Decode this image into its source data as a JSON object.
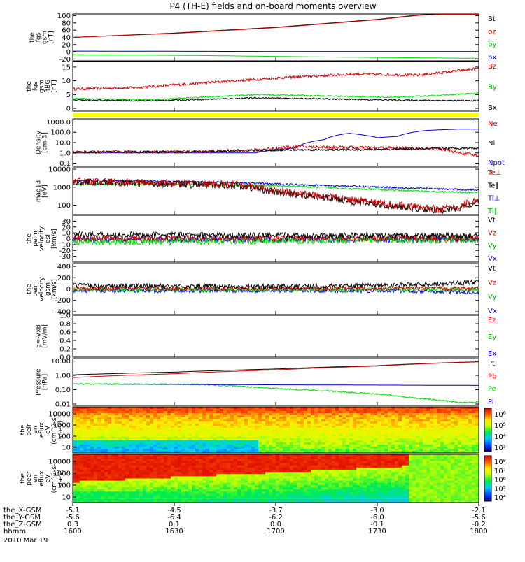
{
  "title": "P4 (TH-E) fields and on-board moments overview",
  "date_label": "2010 Mar 19",
  "colors": {
    "black": "#000000",
    "red": "#cc0000",
    "green": "#00dd00",
    "blue": "#0000cc",
    "yellow": "#ffff00"
  },
  "chart_data": {
    "type": "line",
    "x_tick_labels": [
      "1600",
      "1630",
      "1700",
      "1730",
      "1800"
    ],
    "x_axis": {
      "rows": [
        {
          "label": "the_X-GSM",
          "values": [
            "-5.1",
            "-4.5",
            "-3.7",
            "-3.0",
            "-2.1"
          ]
        },
        {
          "label": "the_Y-GSM",
          "values": [
            "-5.6",
            "-6.4",
            "-6.2",
            "-6.0",
            "-5.6"
          ]
        },
        {
          "label": "the_Z-GSM",
          "values": [
            "0.3",
            "0.1",
            "0.0",
            "-0.1",
            "-0.2"
          ]
        },
        {
          "label": "hhmm",
          "values": [
            "1600",
            "1630",
            "1700",
            "1730",
            "1800"
          ]
        }
      ]
    },
    "panels": [
      {
        "id": "fgs-gsm",
        "ylabel": [
          "the",
          "fgs",
          "gsm",
          "[nT]"
        ],
        "scale": "linear",
        "ylim": [
          -25,
          105
        ],
        "ticks": [
          "100",
          "80",
          "60",
          "40",
          "20",
          "0",
          "-20"
        ],
        "tick_values": [
          100,
          80,
          60,
          40,
          20,
          0,
          -20
        ],
        "legend": [
          {
            "name": "Bt",
            "color": "#000000"
          },
          {
            "name": "bz",
            "color": "#cc0000"
          },
          {
            "name": "by",
            "color": "#00aa00"
          },
          {
            "name": "bx",
            "color": "#0000cc"
          }
        ],
        "series": [
          {
            "name": "Bt",
            "color": "#000000",
            "x": [
              0,
              0.25,
              0.5,
              0.75,
              0.85,
              1
            ],
            "y": [
              40,
              52,
              68,
              90,
              102,
              110
            ],
            "noise": 0
          },
          {
            "name": "bz",
            "color": "#cc0000",
            "x": [
              0,
              0.25,
              0.5,
              0.75,
              0.85,
              1
            ],
            "y": [
              40,
              51,
              67,
              89,
              101,
              109
            ],
            "noise": 0
          },
          {
            "name": "by",
            "color": "#00dd00",
            "x": [
              0,
              0.3,
              0.6,
              1
            ],
            "y": [
              -8,
              -10,
              -14,
              -18
            ],
            "noise": 0
          },
          {
            "name": "bx",
            "color": "#0000cc",
            "x": [
              0,
              0.5,
              1
            ],
            "y": [
              2,
              1,
              1
            ],
            "noise": 0
          }
        ]
      },
      {
        "id": "fgs-tbg",
        "ylabel": [
          "the",
          "fgs",
          "gsm",
          "-tBG",
          "[nT]"
        ],
        "scale": "linear",
        "ylim": [
          -1,
          17
        ],
        "ticks": [
          "15",
          "10",
          "5",
          "0"
        ],
        "tick_values": [
          15,
          10,
          5,
          0
        ],
        "legend": [
          {
            "name": "Bz",
            "color": "#cc0000"
          },
          {
            "name": "By",
            "color": "#00aa00"
          },
          {
            "name": "Bx",
            "color": "#000000"
          }
        ],
        "series": [
          {
            "name": "Bz",
            "color": "#cc0000",
            "x": [
              0,
              0.15,
              0.3,
              0.5,
              0.7,
              0.85,
              1
            ],
            "y": [
              7,
              7.5,
              9,
              11,
              12.5,
              12,
              14.5
            ],
            "noise": 0.5
          },
          {
            "name": "By",
            "color": "#00dd00",
            "x": [
              0,
              0.2,
              0.45,
              0.6,
              0.8,
              1
            ],
            "y": [
              3.5,
              3.2,
              5,
              4.6,
              4,
              5.5
            ],
            "noise": 0.25
          },
          {
            "name": "Bx",
            "color": "#000000",
            "x": [
              0,
              0.2,
              0.45,
              0.6,
              0.8,
              1
            ],
            "y": [
              3,
              2.8,
              3.8,
              3.5,
              3,
              2.8
            ],
            "noise": 0.25
          }
        ]
      },
      {
        "id": "density",
        "ylabel": [
          "Density",
          "[cm-3]"
        ],
        "scale": "log",
        "ylim": [
          0.05,
          2000
        ],
        "ticks": [
          "1000.0",
          "100.0",
          "10.0",
          "1.0",
          "0.1"
        ],
        "tick_values": [
          1000,
          100,
          10,
          1,
          0.1
        ],
        "legend": [
          {
            "name": "Ne",
            "color": "#cc0000"
          },
          {
            "name": "Ni",
            "color": "#000000"
          },
          {
            "name": "Npot",
            "color": "#0000cc"
          }
        ],
        "series": [
          {
            "name": "Npot",
            "color": "#0000cc",
            "x": [
              0,
              0.45,
              0.55,
              0.62,
              0.68,
              0.75,
              0.8,
              0.87,
              0.95,
              1
            ],
            "y": [
              1.0,
              1.0,
              3,
              20,
              80,
              30,
              40,
              150,
              200,
              200
            ],
            "noise": 0
          },
          {
            "name": "Ne",
            "color": "#cc0000",
            "x": [
              0,
              0.3,
              0.45,
              0.55,
              0.65,
              0.8,
              0.9,
              0.95,
              1
            ],
            "y": [
              1.2,
              1.3,
              1.8,
              4,
              3.5,
              3,
              2.5,
              1,
              0.5
            ],
            "noise": 0.15
          },
          {
            "name": "Ni",
            "color": "#000000",
            "x": [
              0,
              0.3,
              0.45,
              0.55,
              0.7,
              0.85,
              1
            ],
            "y": [
              1.2,
              1.3,
              1.7,
              2,
              2,
              2.5,
              3
            ],
            "noise": 0.1
          }
        ]
      },
      {
        "id": "temperature",
        "ylabel": [
          "mag13",
          "[eV]"
        ],
        "scale": "log",
        "ylim": [
          30,
          12000
        ],
        "ticks": [
          "10000",
          "1000",
          "100"
        ],
        "tick_values": [
          10000,
          1000,
          100
        ],
        "legend": [
          {
            "name": "Te⊥",
            "color": "#cc0000"
          },
          {
            "name": "Te∥",
            "color": "#000000"
          },
          {
            "name": "Ti⊥",
            "color": "#0000cc"
          },
          {
            "name": "Ti∥",
            "color": "#00aa00"
          }
        ],
        "series": [
          {
            "name": "Ti∥",
            "color": "#00dd00",
            "x": [
              0,
              0.3,
              0.5,
              0.7,
              0.9,
              1
            ],
            "y": [
              1500,
              1400,
              1200,
              800,
              550,
              500
            ],
            "noise": 0.05
          },
          {
            "name": "Ti⊥",
            "color": "#0000cc",
            "x": [
              0,
              0.3,
              0.5,
              0.7,
              0.9,
              1
            ],
            "y": [
              2300,
              2000,
              1500,
              1100,
              800,
              700
            ],
            "noise": 0.05
          },
          {
            "name": "Te∥",
            "color": "#000000",
            "x": [
              0,
              0.25,
              0.4,
              0.5,
              0.6,
              0.7,
              0.8,
              0.9,
              0.95,
              1
            ],
            "y": [
              2000,
              1500,
              1200,
              500,
              300,
              150,
              80,
              50,
              60,
              150
            ],
            "noise": 0.2
          },
          {
            "name": "Te⊥",
            "color": "#cc0000",
            "x": [
              0,
              0.25,
              0.4,
              0.5,
              0.6,
              0.7,
              0.8,
              0.9,
              0.95,
              1
            ],
            "y": [
              2200,
              1700,
              1400,
              600,
              350,
              180,
              100,
              60,
              80,
              200
            ],
            "noise": 0.2
          }
        ]
      },
      {
        "id": "peim-dsl",
        "ylabel": [
          "the",
          "peim",
          "velocity",
          "dsl",
          "[km/s]"
        ],
        "scale": "linear",
        "ylim": [
          -40,
          40
        ],
        "ticks": [
          "30",
          "20",
          "10",
          "0",
          "-10",
          "-20",
          "-30"
        ],
        "tick_values": [
          30,
          20,
          10,
          0,
          -10,
          -20,
          -30
        ],
        "legend": [
          {
            "name": "Vt",
            "color": "#000000"
          },
          {
            "name": "Vz",
            "color": "#cc0000"
          },
          {
            "name": "Vy",
            "color": "#00aa00"
          },
          {
            "name": "Vx",
            "color": "#0000cc"
          }
        ],
        "series": [
          {
            "name": "Vx",
            "color": "#0000cc",
            "x": [
              0,
              1
            ],
            "y": [
              -2,
              -1
            ],
            "noise": 5
          },
          {
            "name": "Vy",
            "color": "#00dd00",
            "x": [
              0,
              0.5,
              1
            ],
            "y": [
              -6,
              -3,
              -2
            ],
            "noise": 6
          },
          {
            "name": "Vz",
            "color": "#cc0000",
            "x": [
              0,
              1
            ],
            "y": [
              1,
              1
            ],
            "noise": 5
          },
          {
            "name": "Vt",
            "color": "#000000",
            "x": [
              0,
              0.3,
              1
            ],
            "y": [
              8,
              6,
              5
            ],
            "noise": 5
          }
        ]
      },
      {
        "id": "peim-gsm",
        "ylabel": [
          "the",
          "peim",
          "velocity",
          "gsm",
          "[km/s]"
        ],
        "scale": "linear",
        "ylim": [
          -450,
          450
        ],
        "ticks": [
          "400",
          "200",
          "0",
          "-200",
          "-400"
        ],
        "tick_values": [
          400,
          200,
          0,
          -200,
          -400
        ],
        "legend": [
          {
            "name": "Vt",
            "color": "#000000"
          },
          {
            "name": "Vz",
            "color": "#cc0000"
          },
          {
            "name": "Vy",
            "color": "#00aa00"
          },
          {
            "name": "Vx",
            "color": "#0000cc"
          }
        ],
        "series": [
          {
            "name": "Vx",
            "color": "#0000cc",
            "x": [
              0,
              0.8,
              1
            ],
            "y": [
              -30,
              -30,
              -60
            ],
            "noise": 35
          },
          {
            "name": "Vy",
            "color": "#00dd00",
            "x": [
              0,
              1
            ],
            "y": [
              -10,
              -10
            ],
            "noise": 35
          },
          {
            "name": "Vz",
            "color": "#cc0000",
            "x": [
              0,
              1
            ],
            "y": [
              10,
              10
            ],
            "noise": 35
          },
          {
            "name": "Vt",
            "color": "#000000",
            "x": [
              0,
              0.5,
              0.8,
              1
            ],
            "y": [
              60,
              40,
              70,
              120
            ],
            "noise": 45
          }
        ]
      },
      {
        "id": "efield",
        "ylabel": [
          "E=-VxB",
          "[mV/m]"
        ],
        "scale": "linear",
        "ylim": [
          0,
          1.0
        ],
        "ticks": [
          "1.0",
          "0.8",
          "0.6",
          "0.4",
          "0.2",
          "0.0"
        ],
        "tick_values": [
          1.0,
          0.8,
          0.6,
          0.4,
          0.2,
          0.0
        ],
        "legend": [
          {
            "name": "Ez",
            "color": "#cc0000"
          },
          {
            "name": "Ey",
            "color": "#00aa00"
          },
          {
            "name": "Ex",
            "color": "#0000cc"
          }
        ],
        "series": []
      },
      {
        "id": "pressure",
        "ylabel": [
          "Pressure",
          "[nPa]"
        ],
        "scale": "log",
        "ylim": [
          0.008,
          15
        ],
        "ticks": [
          "10.00",
          "1.00",
          "0.10",
          "0.01"
        ],
        "tick_values": [
          10,
          1,
          0.1,
          0.01
        ],
        "legend": [
          {
            "name": "Pt",
            "color": "#000000"
          },
          {
            "name": "Pb",
            "color": "#cc0000"
          },
          {
            "name": "Pe",
            "color": "#00aa00"
          },
          {
            "name": "Pi",
            "color": "#0000cc"
          }
        ],
        "series": [
          {
            "name": "Pt",
            "color": "#000000",
            "x": [
              0,
              0.25,
              0.5,
              0.75,
              1
            ],
            "y": [
              1.1,
              1.7,
              2.8,
              4.8,
              9
            ],
            "noise": 0
          },
          {
            "name": "Pb",
            "color": "#cc0000",
            "x": [
              0,
              0.25,
              0.5,
              0.75,
              1
            ],
            "y": [
              0.7,
              1.3,
              2.4,
              4.5,
              8.8
            ],
            "noise": 0
          },
          {
            "name": "Pe",
            "color": "#00dd00",
            "x": [
              0,
              0.3,
              0.5,
              0.7,
              0.85,
              0.95,
              1
            ],
            "y": [
              0.25,
              0.24,
              0.12,
              0.06,
              0.025,
              0.013,
              0.014
            ],
            "noise": 0.05
          },
          {
            "name": "Pi",
            "color": "#0000cc",
            "x": [
              0,
              0.5,
              1
            ],
            "y": [
              0.25,
              0.22,
              0.2
            ],
            "noise": 0
          }
        ]
      }
    ],
    "spectrograms": [
      {
        "id": "peir-eflux",
        "ylabel": [
          "the",
          "peir",
          "en",
          "eflux",
          "eV",
          "(cm^2-s-",
          "sr-eV)"
        ],
        "ticks": [
          "10000",
          "1000",
          "100",
          "10"
        ],
        "colorbar_ticks": [
          "10⁶",
          "10⁵",
          "10⁴",
          "10³"
        ]
      },
      {
        "id": "peer-eflux",
        "ylabel": [
          "the",
          "peer",
          "en",
          "eflux",
          "eV",
          "(cm^2-s-",
          "sr-eV)"
        ],
        "ticks": [
          "10000",
          "1000",
          "100",
          "10"
        ],
        "colorbar_ticks": [
          "10⁸",
          "10⁷",
          "10⁶",
          "10⁵",
          "10⁴"
        ]
      }
    ]
  }
}
